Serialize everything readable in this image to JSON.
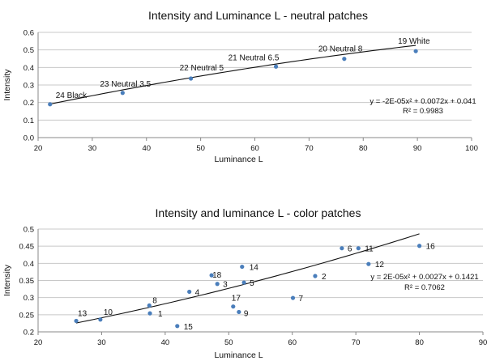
{
  "chart_data": [
    {
      "type": "scatter",
      "title": "Intensity and Luminance L - neutral patches",
      "xlabel": "Luminance L",
      "ylabel": "Intensity",
      "xlim": [
        20,
        100
      ],
      "ylim": [
        0,
        0.6
      ],
      "xticks": [
        "20",
        "30",
        "40",
        "50",
        "60",
        "70",
        "80",
        "90",
        "100"
      ],
      "yticks": [
        "0.0",
        "0.1",
        "0.2",
        "0.3",
        "0.4",
        "0.5",
        "0.6"
      ],
      "grid": true,
      "point_color": "#4a7ebb",
      "points": [
        {
          "label": "24 Black",
          "x": 22.2,
          "y": 0.19
        },
        {
          "label": "23 Neutral 3.5",
          "x": 35.6,
          "y": 0.255
        },
        {
          "label": "22 Neutral 5",
          "x": 48.2,
          "y": 0.337
        },
        {
          "label": "21 Neutral 6.5",
          "x": 63.9,
          "y": 0.405
        },
        {
          "label": "20 Neutral 8",
          "x": 76.5,
          "y": 0.449
        },
        {
          "label": "19 White",
          "x": 89.7,
          "y": 0.493
        }
      ],
      "trendline": {
        "type": "polynomial",
        "a": -2e-05,
        "b": 0.0072,
        "c": 0.041
      },
      "equation": "y = -2E-05x² + 0.0072x + 0.041",
      "r2": "R² = 0.9983"
    },
    {
      "type": "scatter",
      "title": "Intensity and luminance L - color patches",
      "xlabel": "Luminance L",
      "ylabel": "Intensity",
      "xlim": [
        20,
        90
      ],
      "ylim": [
        0.2,
        0.5
      ],
      "xticks": [
        "20",
        "30",
        "40",
        "50",
        "60",
        "70",
        "80",
        "90"
      ],
      "yticks": [
        "0.2",
        "0.25",
        "0.3",
        "0.35",
        "0.4",
        "0.45",
        "0.5"
      ],
      "grid": true,
      "point_color": "#4a7ebb",
      "points": [
        {
          "label": "1",
          "x": 37.6,
          "y": 0.254
        },
        {
          "label": "2",
          "x": 63.6,
          "y": 0.363
        },
        {
          "label": "3",
          "x": 48.2,
          "y": 0.34
        },
        {
          "label": "4",
          "x": 43.8,
          "y": 0.317
        },
        {
          "label": "5",
          "x": 52.4,
          "y": 0.344
        },
        {
          "label": "6",
          "x": 67.8,
          "y": 0.444
        },
        {
          "label": "7",
          "x": 60.1,
          "y": 0.299
        },
        {
          "label": "8",
          "x": 37.5,
          "y": 0.277
        },
        {
          "label": "9",
          "x": 51.6,
          "y": 0.258
        },
        {
          "label": "10",
          "x": 29.8,
          "y": 0.236
        },
        {
          "label": "11",
          "x": 70.4,
          "y": 0.444
        },
        {
          "label": "12",
          "x": 72.0,
          "y": 0.398
        },
        {
          "label": "13",
          "x": 26.0,
          "y": 0.232
        },
        {
          "label": "14",
          "x": 52.1,
          "y": 0.39
        },
        {
          "label": "15",
          "x": 41.9,
          "y": 0.217
        },
        {
          "label": "16",
          "x": 80.0,
          "y": 0.451
        },
        {
          "label": "17",
          "x": 50.7,
          "y": 0.274
        },
        {
          "label": "18",
          "x": 47.3,
          "y": 0.365
        }
      ],
      "trendline": {
        "type": "polynomial",
        "a": 2e-05,
        "b": 0.0027,
        "c": 0.1421
      },
      "equation": "y = 2E-05x² + 0.0027x + 0.1421",
      "r2": "R² = 0.7062"
    }
  ]
}
